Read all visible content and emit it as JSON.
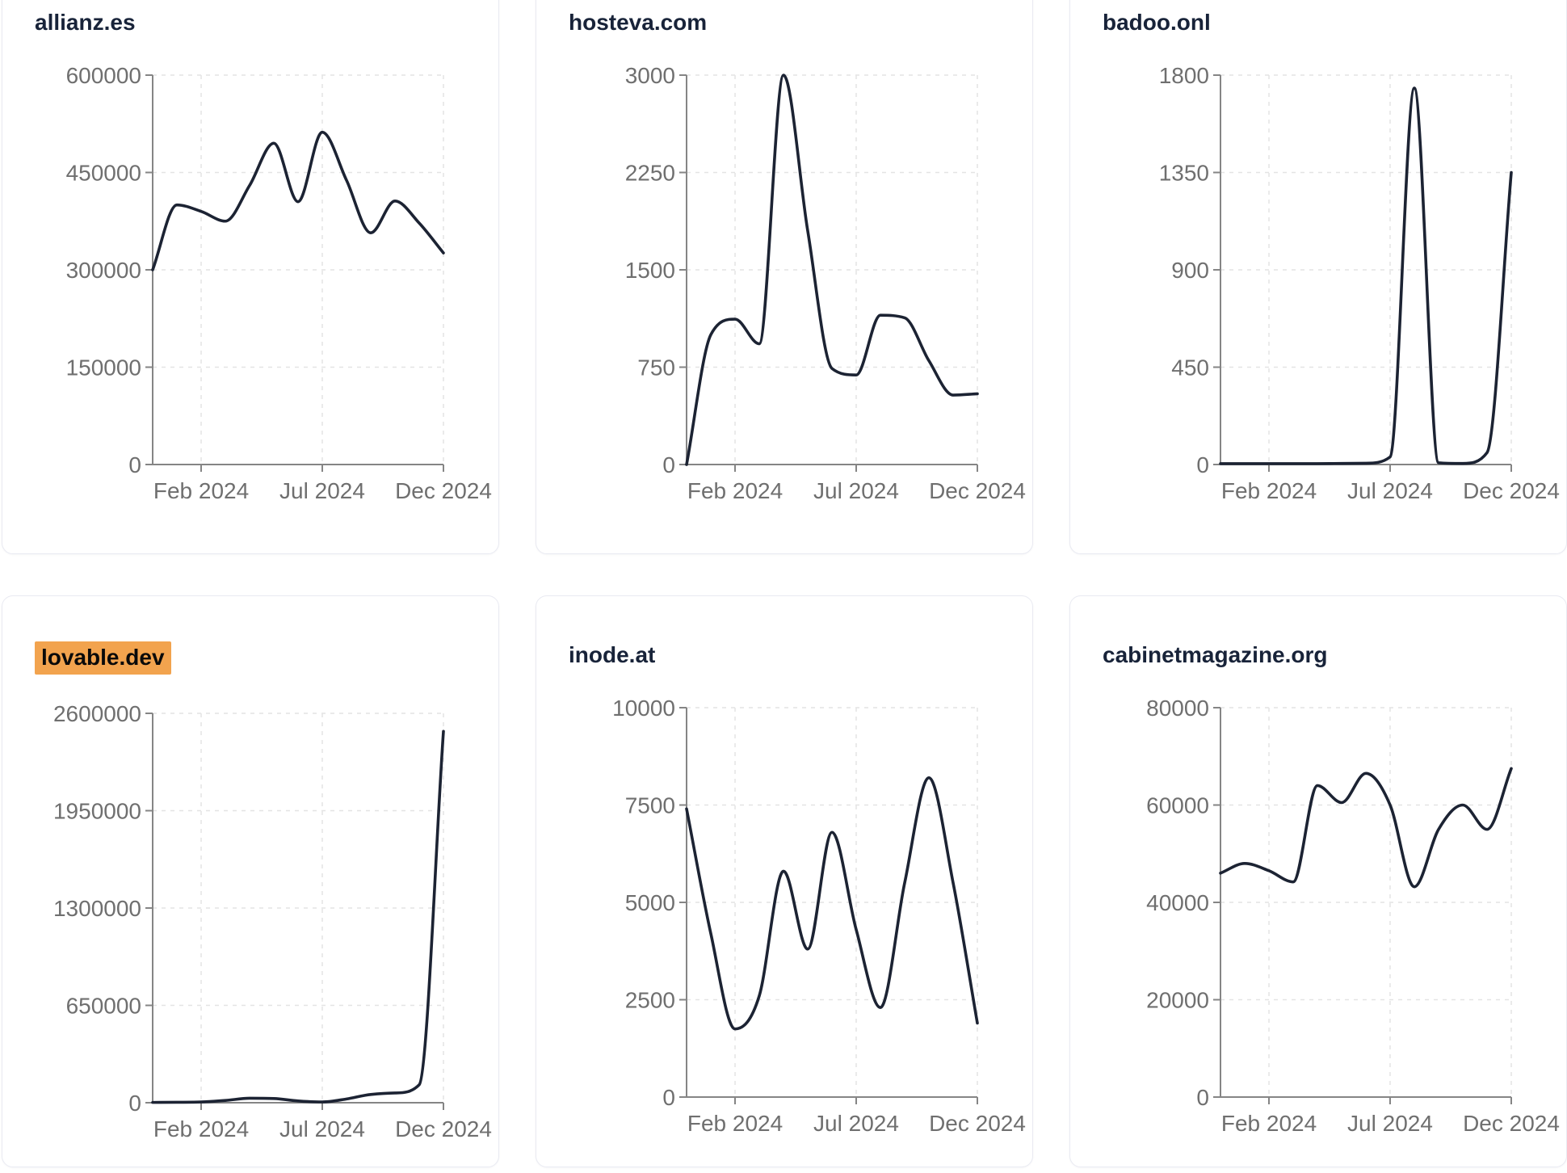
{
  "page": {
    "background": "#ffffff",
    "description": "Dashboard grid of six domain traffic line charts, Dec 2023 - Dec 2024"
  },
  "style": {
    "line_color": "#1c2333",
    "axis_color": "#858585",
    "label_color": "#6f6f6f",
    "grid_color": "#e4e4e4",
    "title_color": "#182339",
    "card_border": "#e9eaf2",
    "highlight_color": "#f2a34e"
  },
  "chart_data": [
    {
      "type": "line",
      "title": "allianz.es",
      "highlighted": false,
      "ylim": [
        0,
        600000
      ],
      "y_ticks": [
        0,
        150000,
        300000,
        450000,
        600000
      ],
      "x_ticks": [
        {
          "label": "Feb 2024",
          "pos": 0.1667
        },
        {
          "label": "Jul 2024",
          "pos": 0.5833
        },
        {
          "label": "Dec 2024",
          "pos": 1.0
        }
      ],
      "x_note": "13 evenly spaced monthly points, Dec 2023 through Dec 2024",
      "values": [
        300000,
        400000,
        390000,
        375000,
        430000,
        495000,
        405000,
        512000,
        438000,
        357000,
        406000,
        372000,
        326000
      ],
      "grid": "dashed",
      "legend": "none"
    },
    {
      "type": "line",
      "title": "hosteva.com",
      "highlighted": false,
      "ylim": [
        0,
        3000
      ],
      "y_ticks": [
        0,
        750,
        1500,
        2250,
        3000
      ],
      "x_ticks": [
        {
          "label": "Feb 2024",
          "pos": 0.1667
        },
        {
          "label": "Jul 2024",
          "pos": 0.5833
        },
        {
          "label": "Dec 2024",
          "pos": 1.0
        }
      ],
      "x_note": "13 evenly spaced monthly points, Dec 2023 through Dec 2024",
      "values": [
        0,
        1000,
        1120,
        930,
        3000,
        1800,
        740,
        690,
        1150,
        1130,
        800,
        535,
        545
      ],
      "grid": "dashed",
      "legend": "none"
    },
    {
      "type": "line",
      "title": "badoo.onl",
      "highlighted": false,
      "ylim": [
        0,
        1800
      ],
      "y_ticks": [
        0,
        450,
        900,
        1350,
        1800
      ],
      "x_ticks": [
        {
          "label": "Feb 2024",
          "pos": 0.1667
        },
        {
          "label": "Jul 2024",
          "pos": 0.5833
        },
        {
          "label": "Dec 2024",
          "pos": 1.0
        }
      ],
      "x_note": "13 evenly spaced monthly points, Dec 2023 through Dec 2024",
      "values": [
        4,
        4,
        4,
        4,
        4,
        5,
        6,
        35,
        1740,
        8,
        5,
        55,
        1350
      ],
      "grid": "dashed",
      "legend": "none"
    },
    {
      "type": "line",
      "title": "lovable.dev",
      "highlighted": true,
      "ylim": [
        0,
        2600000
      ],
      "y_ticks": [
        0,
        650000,
        1300000,
        1950000,
        2600000
      ],
      "x_ticks": [
        {
          "label": "Feb 2024",
          "pos": 0.1667
        },
        {
          "label": "Jul 2024",
          "pos": 0.5833
        },
        {
          "label": "Dec 2024",
          "pos": 1.0
        }
      ],
      "x_note": "13 evenly spaced monthly points, Dec 2023 through Dec 2024",
      "values": [
        2000,
        3000,
        5000,
        15000,
        30000,
        28000,
        12000,
        5000,
        25000,
        55000,
        65000,
        120000,
        2480000
      ],
      "grid": "dashed",
      "legend": "none"
    },
    {
      "type": "line",
      "title": "inode.at",
      "highlighted": false,
      "ylim": [
        0,
        10000
      ],
      "y_ticks": [
        0,
        2500,
        5000,
        7500,
        10000
      ],
      "x_ticks": [
        {
          "label": "Feb 2024",
          "pos": 0.1667
        },
        {
          "label": "Jul 2024",
          "pos": 0.5833
        },
        {
          "label": "Dec 2024",
          "pos": 1.0
        }
      ],
      "x_note": "13 evenly spaced monthly points, Dec 2023 through Dec 2024",
      "values": [
        7400,
        4200,
        1750,
        2600,
        5800,
        3800,
        6800,
        4300,
        2300,
        5500,
        8200,
        5500,
        1900
      ],
      "grid": "dashed",
      "legend": "none"
    },
    {
      "type": "line",
      "title": "cabinetmagazine.org",
      "highlighted": false,
      "ylim": [
        0,
        80000
      ],
      "y_ticks": [
        0,
        20000,
        40000,
        60000,
        80000
      ],
      "x_ticks": [
        {
          "label": "Feb 2024",
          "pos": 0.1667
        },
        {
          "label": "Jul 2024",
          "pos": 0.5833
        },
        {
          "label": "Dec 2024",
          "pos": 1.0
        }
      ],
      "x_note": "13 evenly spaced monthly points, Dec 2023 through Dec 2024",
      "values": [
        46000,
        48000,
        46500,
        44200,
        64000,
        60500,
        66500,
        60000,
        43200,
        55000,
        60000,
        55000,
        67500
      ],
      "grid": "dashed",
      "legend": "none"
    }
  ]
}
